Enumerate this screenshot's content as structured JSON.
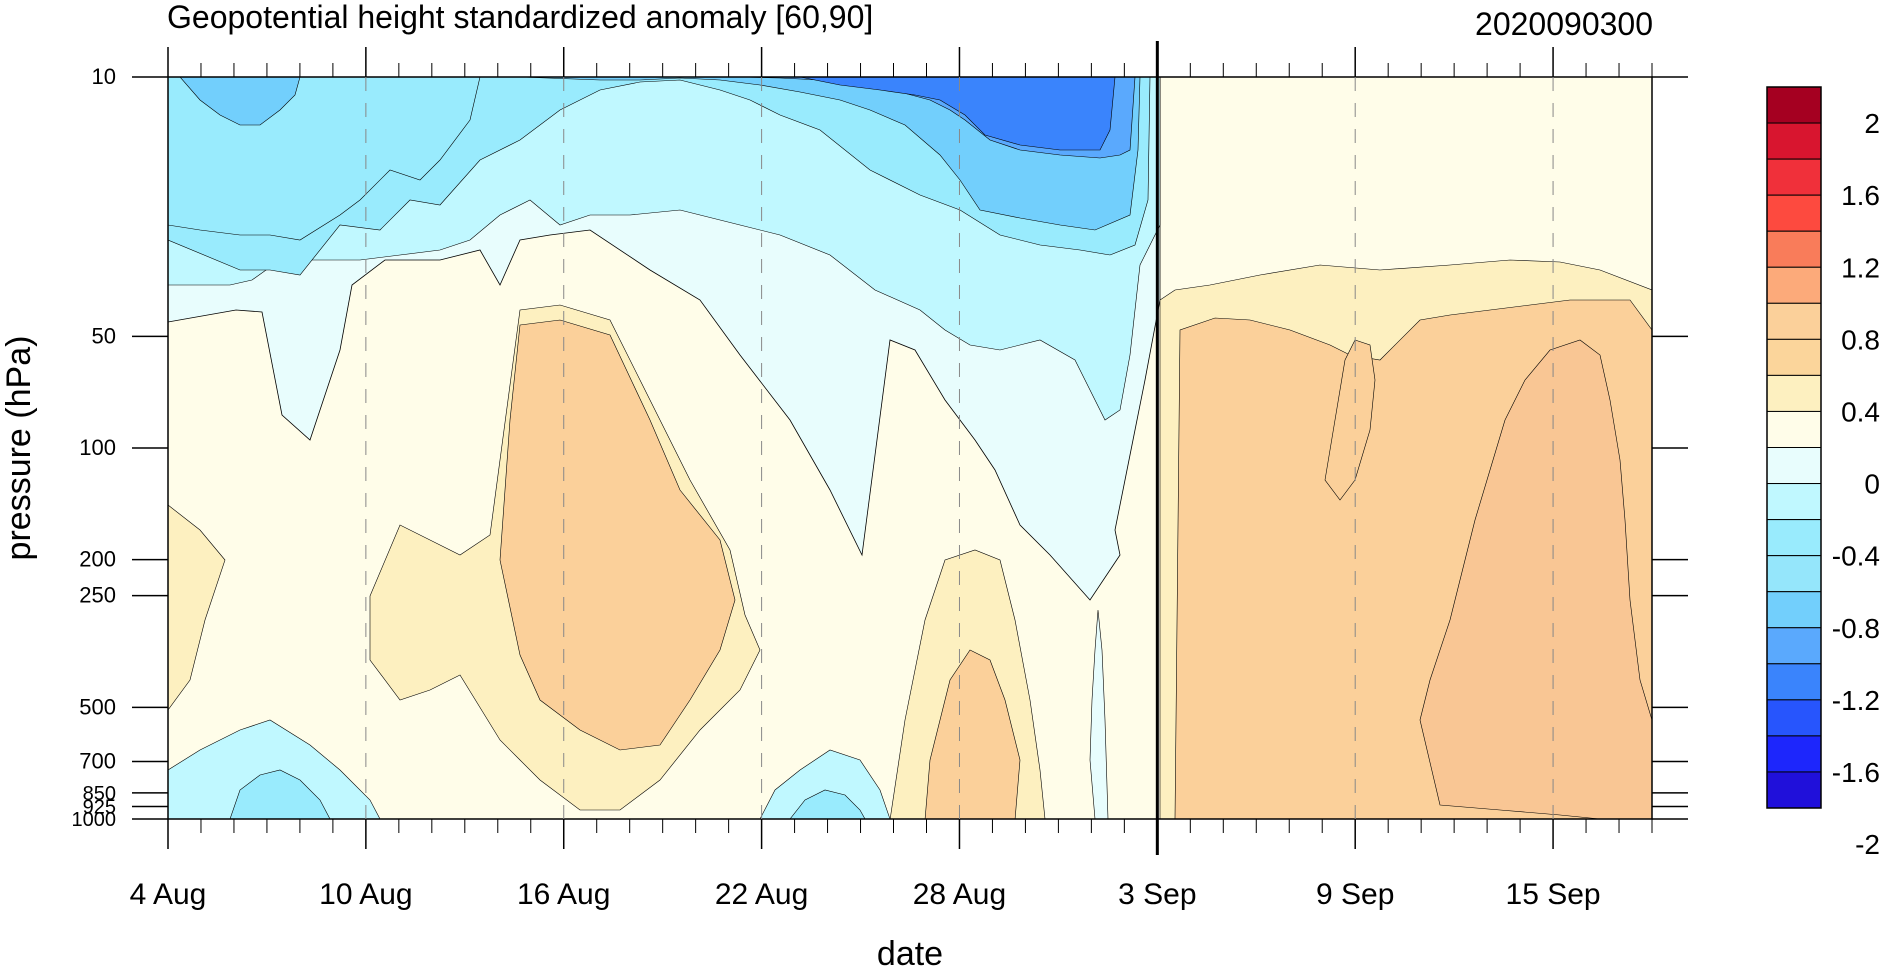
{
  "chart_data": {
    "type": "heatmap",
    "title": "Geopotential height standardized anomaly [60,90]",
    "run_label": "2020090300",
    "xlabel": "date",
    "ylabel": "pressure (hPa)",
    "x_ticks": [
      "4 Aug",
      "10 Aug",
      "16 Aug",
      "22 Aug",
      "28 Aug",
      "3 Sep",
      "9 Sep",
      "15 Sep"
    ],
    "x_range": [
      "4 Aug",
      "18 Sep"
    ],
    "y_ticks": [
      "10",
      "50",
      "100",
      "200",
      "250",
      "500",
      "700",
      "850",
      "925",
      "1000"
    ],
    "y_range": [
      1000,
      10
    ],
    "y_scale": "log",
    "analysis_date": "3 Sep",
    "colorbar_labels": [
      "2",
      "1.6",
      "1.2",
      "0.8",
      "0.4",
      "0",
      "-0.4",
      "-0.8",
      "-1.2",
      "-1.6",
      "-2"
    ],
    "colorbar_colors": [
      "#a50021",
      "#d8152f",
      "#f0303a",
      "#fd4a3f",
      "#f97c5a",
      "#fcaa7a",
      "#fbd09a",
      "#fbd59b",
      "#fdf0c0",
      "#fffde9",
      "#e8fdfd",
      "#c0f8ff",
      "#99ebfd",
      "#95e6fb",
      "#72cffc",
      "#5aa9fd",
      "#3a84fc",
      "#2755fd",
      "#1d26fc",
      "#2010da"
    ],
    "color_series": [
      {
        "name": "s-0.8",
        "color": "#fbd09a"
      },
      {
        "name": "s-0.4",
        "color": "#fdf0c0"
      },
      {
        "name": "s-0.0",
        "color": "#fffde9"
      },
      {
        "name": "s-neg0.4",
        "color": "#e8fdfd"
      },
      {
        "name": "s-neg0.8",
        "color": "#c0f8ff"
      },
      {
        "name": "s-neg1.2",
        "color": "#99ebfd"
      },
      {
        "name": "s-neg1.6",
        "color": "#72cffc"
      },
      {
        "name": "s-neg2.0",
        "color": "#5aa9fd"
      }
    ]
  }
}
